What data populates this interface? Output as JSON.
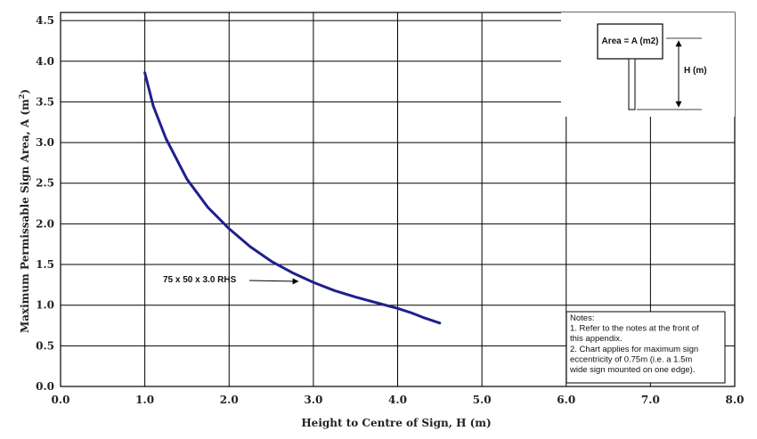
{
  "chart_data": {
    "type": "line",
    "xlabel": "Height to Centre of Sign, H (m)",
    "ylabel": "Maximum Permissable Sign Area, A (m",
    "ylabel_superscript": "2",
    "ylabel_suffix": ")",
    "xlim": [
      0,
      8
    ],
    "ylim": [
      0,
      4.6
    ],
    "x_ticks": [
      "0.0",
      "1.0",
      "2.0",
      "3.0",
      "4.0",
      "5.0",
      "6.0",
      "7.0",
      "8.0"
    ],
    "y_ticks": [
      "0.0",
      "0.5",
      "1.0",
      "1.5",
      "2.0",
      "2.5",
      "3.0",
      "3.5",
      "4.0",
      "4.5"
    ],
    "grid": true,
    "series": [
      {
        "color": "#1f1f8f",
        "x": [
          1.0,
          1.1,
          1.25,
          1.5,
          1.75,
          2.0,
          2.25,
          2.5,
          2.75,
          3.0,
          3.25,
          3.5,
          3.75,
          4.0,
          4.15,
          4.3,
          4.5
        ],
        "y": [
          3.86,
          3.45,
          3.05,
          2.55,
          2.2,
          1.94,
          1.72,
          1.54,
          1.4,
          1.28,
          1.18,
          1.1,
          1.03,
          0.96,
          0.91,
          0.85,
          0.78
        ]
      }
    ],
    "annotation": "75 x 50 x 3.0 RHS",
    "annotation_point": [
      3.0,
      1.3
    ],
    "inset": {
      "area_label": "Area = A (m2)",
      "height_label": "H (m)"
    },
    "notes": [
      "Notes:",
      "1. Refer to the notes at the front of",
      "this appendix.",
      "2. Chart applies for maximum sign",
      "eccentricity of 0.75m (i.e. a 1.5m",
      "wide sign mounted on one edge)."
    ]
  }
}
